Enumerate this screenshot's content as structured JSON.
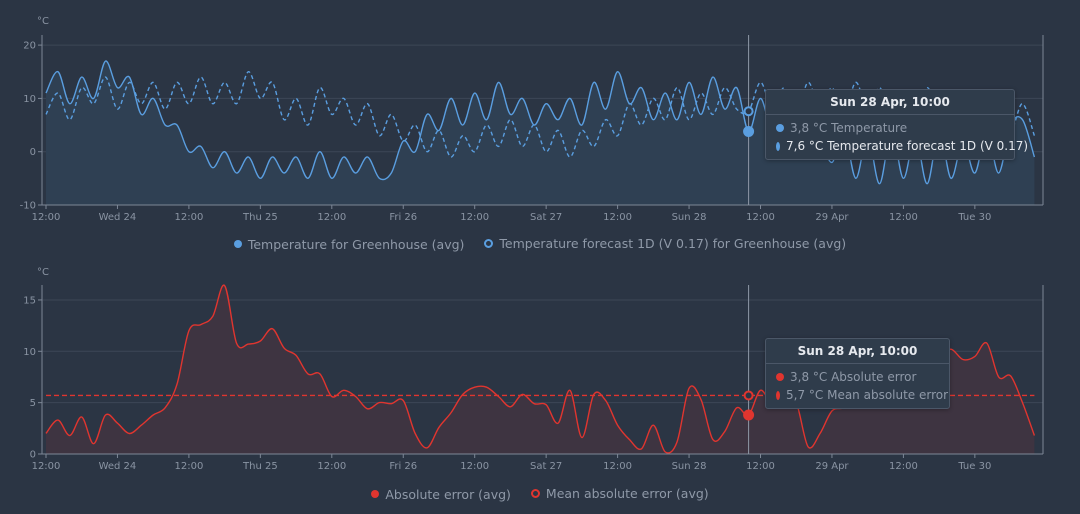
{
  "colors": {
    "background": "#2b3544",
    "temperature": "#5a9ee0",
    "temp_fill": "#2f4053",
    "error": "#e0352f",
    "error_fill": "#3e3441",
    "grid": "#3c4756",
    "axis": "#7d8796"
  },
  "chart_data": [
    {
      "type": "line",
      "unit_label": "°C",
      "ylim": [
        -10,
        20
      ],
      "yticks": [
        20,
        10,
        0,
        -10
      ],
      "grid": true,
      "legend_placement": "bottom",
      "x_start": "Tue 23 Apr, 12:00",
      "x_step_hours": 2,
      "xticks": [
        "12:00",
        "Wed 24",
        "12:00",
        "Thu 25",
        "12:00",
        "Fri 26",
        "12:00",
        "Sat 27",
        "12:00",
        "Sun 28",
        "12:00",
        "29 Apr",
        "12:00",
        "Tue 30"
      ],
      "series": [
        {
          "name": "Temperature for Greenhouse (avg)",
          "style": "solid",
          "filled": true,
          "values": [
            11,
            15,
            9,
            14,
            10,
            17,
            12,
            14,
            7,
            10,
            5,
            5,
            0,
            1,
            -3,
            0,
            -4,
            -1,
            -5,
            -1,
            -4,
            -1,
            -5,
            0,
            -5,
            -1,
            -4,
            -1,
            -5,
            -4,
            2,
            0,
            7,
            4,
            10,
            5,
            11,
            6,
            13,
            7,
            10,
            5,
            9,
            6,
            10,
            5,
            13,
            8,
            15,
            9,
            12,
            6,
            11,
            6,
            13,
            7,
            14,
            8,
            12,
            3.8,
            10,
            4,
            11,
            5,
            10,
            3,
            -2,
            4,
            -5,
            3,
            -6,
            4,
            -5,
            3,
            -6,
            4,
            -5,
            2,
            -4,
            4,
            -4,
            5,
            6,
            -1
          ]
        },
        {
          "name": "Temperature forecast 1D (V 0.17) for Greenhouse (avg)",
          "style": "dashed",
          "filled": false,
          "values": [
            7,
            11,
            6,
            12,
            9,
            14,
            8,
            13,
            9,
            13,
            8,
            13,
            9,
            14,
            9,
            13,
            9,
            15,
            10,
            13,
            6,
            10,
            5,
            12,
            7,
            10,
            5,
            9,
            3,
            7,
            2,
            5,
            0,
            4,
            -1,
            3,
            0,
            5,
            1,
            6,
            1,
            5,
            0,
            4,
            -1,
            4,
            1,
            6,
            3,
            9,
            5,
            10,
            6,
            12,
            6,
            11,
            7,
            12,
            8,
            7.6,
            13,
            8,
            12,
            7,
            13,
            8,
            12,
            7,
            13,
            8,
            12,
            7,
            11,
            6,
            12,
            7,
            10,
            5,
            11,
            6,
            10,
            4,
            9,
            3
          ]
        }
      ],
      "tooltip": {
        "title": "Sun 28 Apr, 10:00",
        "rows": [
          {
            "text": "3,8 °C Temperature",
            "value": 3.8
          },
          {
            "text": "7,6 °C Temperature forecast 1D (V 0.17)",
            "value": 7.6
          }
        ]
      },
      "cursor_time": "Sun 28 Apr, 10:00"
    },
    {
      "type": "area",
      "unit_label": "°C",
      "ylim": [
        0,
        16.5
      ],
      "yticks": [
        15,
        10,
        5,
        0
      ],
      "grid": true,
      "legend_placement": "bottom",
      "x_start": "Tue 23 Apr, 12:00",
      "x_step_hours": 2,
      "xticks": [
        "12:00",
        "Wed 24",
        "12:00",
        "Thu 25",
        "12:00",
        "Fri 26",
        "12:00",
        "Sat 27",
        "12:00",
        "Sun 28",
        "12:00",
        "29 Apr",
        "12:00",
        "Tue 30"
      ],
      "series": [
        {
          "name": "Absolute error (avg)",
          "style": "solid",
          "filled": true,
          "values": [
            2,
            3.3,
            1.8,
            3.6,
            1.0,
            3.8,
            3.0,
            2.0,
            2.8,
            3.8,
            4.5,
            6.8,
            12.0,
            12.6,
            13.4,
            16.4,
            10.8,
            10.7,
            11.0,
            12.2,
            10.3,
            9.6,
            7.8,
            7.8,
            5.6,
            6.2,
            5.6,
            4.4,
            5.0,
            4.9,
            5.2,
            2.0,
            0.6,
            2.6,
            4.0,
            5.8,
            6.5,
            6.5,
            5.6,
            4.6,
            5.8,
            4.9,
            4.8,
            3.0,
            6.2,
            1.6,
            5.8,
            5.2,
            2.8,
            1.4,
            0.5,
            2.8,
            0.2,
            1.2,
            6.4,
            5.3,
            1.4,
            2.2,
            4.5,
            3.8,
            6.2,
            4.8,
            5.5,
            5.0,
            0.7,
            2.0,
            4.2,
            4.5,
            5.5,
            6.5,
            7.0,
            7.5,
            8.0,
            8.5,
            9.0,
            9.5,
            10.2,
            9.2,
            9.5,
            10.8,
            7.5,
            7.6,
            5.0,
            1.8
          ]
        },
        {
          "name": "Mean absolute error (avg)",
          "style": "dashed",
          "filled": false,
          "constant": 5.7
        }
      ],
      "tooltip": {
        "title": "Sun 28 Apr, 10:00",
        "rows": [
          {
            "text": "3,8 °C Absolute error",
            "value": 3.8
          },
          {
            "text": "5,7 °C Mean absolute error",
            "value": 5.7
          }
        ]
      },
      "cursor_time": "Sun 28 Apr, 10:00"
    }
  ]
}
